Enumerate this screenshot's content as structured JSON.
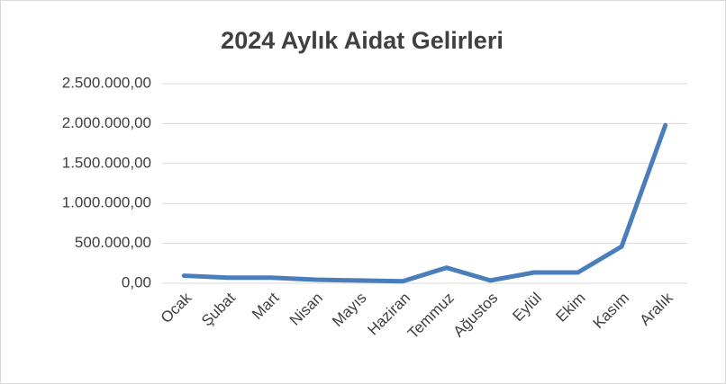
{
  "chart_data": {
    "type": "line",
    "title": "2024 Aylık Aidat Gelirleri",
    "categories": [
      "Ocak",
      "Şubat",
      "Mart",
      "Nisan",
      "Mayıs",
      "Haziran",
      "Temmuz",
      "Ağustos",
      "Eylül",
      "Ekim",
      "Kasım",
      "Aralık"
    ],
    "series": [
      {
        "name": "Aidat Gelirleri",
        "color": "#4a7ebb",
        "values": [
          95000,
          70000,
          70000,
          45000,
          35000,
          25000,
          195000,
          35000,
          135000,
          135000,
          460000,
          1980000
        ]
      }
    ],
    "ylim": [
      0,
      2500000
    ],
    "yticks": [
      {
        "value": 0,
        "label": "0,00"
      },
      {
        "value": 500000,
        "label": "500.000,00"
      },
      {
        "value": 1000000,
        "label": "1.000.000,00"
      },
      {
        "value": 1500000,
        "label": "1.500.000,00"
      },
      {
        "value": 2000000,
        "label": "2.000.000,00"
      },
      {
        "value": 2500000,
        "label": "2.500.000,00"
      }
    ],
    "grid": true,
    "legend": false
  }
}
